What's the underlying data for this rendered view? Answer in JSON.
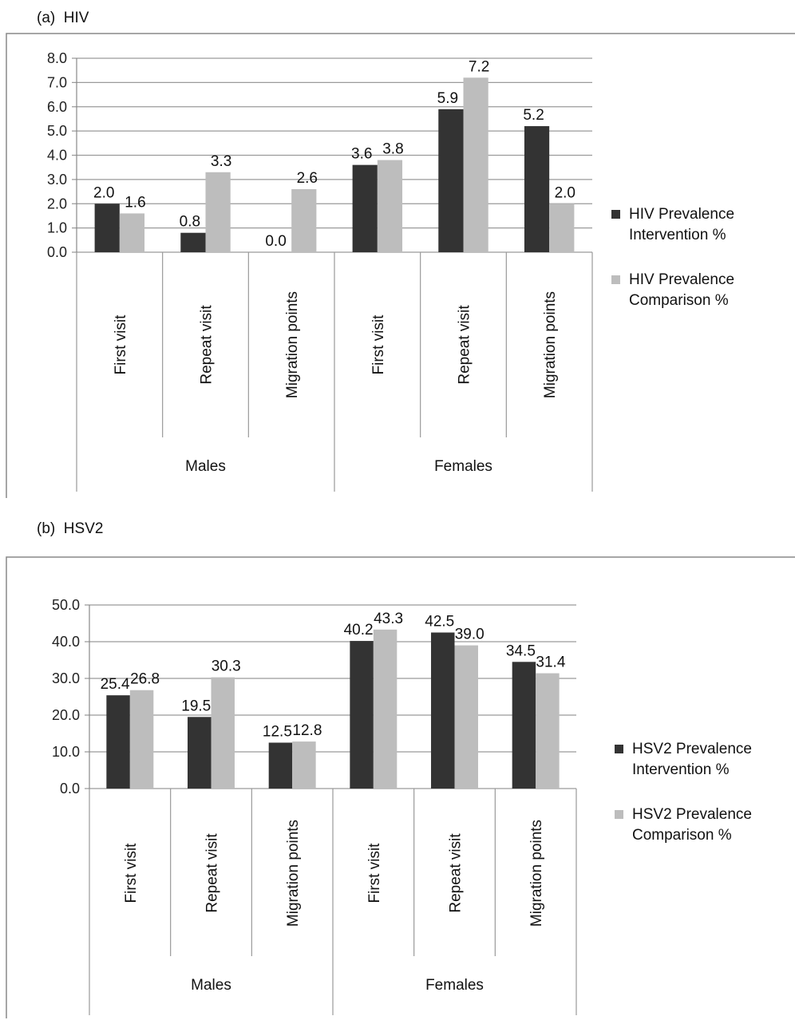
{
  "panels": [
    {
      "label": "(a)",
      "name": "HIV"
    },
    {
      "label": "(b)",
      "name": "HSV2"
    }
  ],
  "chart_data": [
    {
      "type": "bar",
      "title": "",
      "groups": [
        {
          "label": "Males",
          "categories": [
            "First visit",
            "Repeat visit",
            "Migration points"
          ]
        },
        {
          "label": "Females",
          "categories": [
            "First visit",
            "Repeat visit",
            "Migration points"
          ]
        }
      ],
      "series": [
        {
          "name": "HIV Prevalence Intervention %",
          "legend_lines": [
            "HIV Prevalence",
            "Intervention %"
          ],
          "color": "#333333",
          "values": [
            2.0,
            0.8,
            0.0,
            3.6,
            5.9,
            5.2
          ]
        },
        {
          "name": "HIV Prevalence Comparison %",
          "legend_lines": [
            "HIV Prevalence",
            "Comparison %"
          ],
          "color": "#bdbdbd",
          "values": [
            1.6,
            3.3,
            2.6,
            3.8,
            7.2,
            2.0
          ]
        }
      ],
      "yticks": [
        "0.0",
        "1.0",
        "2.0",
        "3.0",
        "4.0",
        "5.0",
        "6.0",
        "7.0",
        "8.0"
      ],
      "ylim": [
        0,
        8
      ],
      "grid": true,
      "legend_position": "right"
    },
    {
      "type": "bar",
      "title": "",
      "groups": [
        {
          "label": "Males",
          "categories": [
            "First visit",
            "Repeat visit",
            "Migration points"
          ]
        },
        {
          "label": "Females",
          "categories": [
            "First visit",
            "Repeat visit",
            "Migration points"
          ]
        }
      ],
      "series": [
        {
          "name": "HSV2 Prevalence Intervention %",
          "legend_lines": [
            "HSV2 Prevalence",
            "Intervention %"
          ],
          "color": "#333333",
          "values": [
            25.4,
            19.5,
            12.5,
            40.2,
            42.5,
            34.5
          ]
        },
        {
          "name": "HSV2 Prevalence Comparison %",
          "legend_lines": [
            "HSV2 Prevalence",
            "Comparison %"
          ],
          "color": "#bdbdbd",
          "values": [
            26.8,
            30.3,
            12.8,
            43.3,
            39.0,
            31.4
          ]
        }
      ],
      "yticks": [
        "0.0",
        "10.0",
        "20.0",
        "30.0",
        "40.0",
        "50.0"
      ],
      "ylim": [
        0,
        50
      ],
      "grid": true,
      "legend_position": "right"
    }
  ]
}
